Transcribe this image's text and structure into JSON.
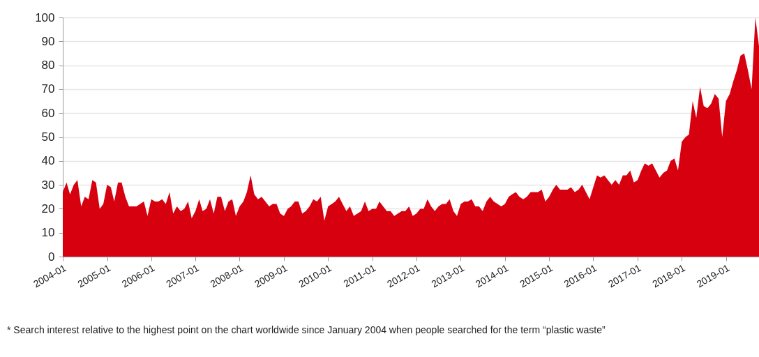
{
  "chart_data": {
    "type": "area",
    "x": [
      "2004-01",
      "2004-02",
      "2004-03",
      "2004-04",
      "2004-05",
      "2004-06",
      "2004-07",
      "2004-08",
      "2004-09",
      "2004-10",
      "2004-11",
      "2004-12",
      "2005-01",
      "2005-02",
      "2005-03",
      "2005-04",
      "2005-05",
      "2005-06",
      "2005-07",
      "2005-08",
      "2005-09",
      "2005-10",
      "2005-11",
      "2005-12",
      "2006-01",
      "2006-02",
      "2006-03",
      "2006-04",
      "2006-05",
      "2006-06",
      "2006-07",
      "2006-08",
      "2006-09",
      "2006-10",
      "2006-11",
      "2006-12",
      "2007-01",
      "2007-02",
      "2007-03",
      "2007-04",
      "2007-05",
      "2007-06",
      "2007-07",
      "2007-08",
      "2007-09",
      "2007-10",
      "2007-11",
      "2007-12",
      "2008-01",
      "2008-02",
      "2008-03",
      "2008-04",
      "2008-05",
      "2008-06",
      "2008-07",
      "2008-08",
      "2008-09",
      "2008-10",
      "2008-11",
      "2008-12",
      "2009-01",
      "2009-02",
      "2009-03",
      "2009-04",
      "2009-05",
      "2009-06",
      "2009-07",
      "2009-08",
      "2009-09",
      "2009-10",
      "2009-11",
      "2009-12",
      "2010-01",
      "2010-02",
      "2010-03",
      "2010-04",
      "2010-05",
      "2010-06",
      "2010-07",
      "2010-08",
      "2010-09",
      "2010-10",
      "2010-11",
      "2010-12",
      "2011-01",
      "2011-02",
      "2011-03",
      "2011-04",
      "2011-05",
      "2011-06",
      "2011-07",
      "2011-08",
      "2011-09",
      "2011-10",
      "2011-11",
      "2011-12",
      "2012-01",
      "2012-02",
      "2012-03",
      "2012-04",
      "2012-05",
      "2012-06",
      "2012-07",
      "2012-08",
      "2012-09",
      "2012-10",
      "2012-11",
      "2012-12",
      "2013-01",
      "2013-02",
      "2013-03",
      "2013-04",
      "2013-05",
      "2013-06",
      "2013-07",
      "2013-08",
      "2013-09",
      "2013-10",
      "2013-11",
      "2013-12",
      "2014-01",
      "2014-02",
      "2014-03",
      "2014-04",
      "2014-05",
      "2014-06",
      "2014-07",
      "2014-08",
      "2014-09",
      "2014-10",
      "2014-11",
      "2014-12",
      "2015-01",
      "2015-02",
      "2015-03",
      "2015-04",
      "2015-05",
      "2015-06",
      "2015-07",
      "2015-08",
      "2015-09",
      "2015-10",
      "2015-11",
      "2015-12",
      "2016-01",
      "2016-02",
      "2016-03",
      "2016-04",
      "2016-05",
      "2016-06",
      "2016-07",
      "2016-08",
      "2016-09",
      "2016-10",
      "2016-11",
      "2016-12",
      "2017-01",
      "2017-02",
      "2017-03",
      "2017-04",
      "2017-05",
      "2017-06",
      "2017-07",
      "2017-08",
      "2017-09",
      "2017-10",
      "2017-11",
      "2017-12",
      "2018-01",
      "2018-02",
      "2018-03",
      "2018-04",
      "2018-05",
      "2018-06",
      "2018-07",
      "2018-08",
      "2018-09",
      "2018-10",
      "2018-11",
      "2018-12",
      "2019-01",
      "2019-02",
      "2019-03",
      "2019-04",
      "2019-05",
      "2019-06",
      "2019-07",
      "2019-08",
      "2019-09",
      "2019-10"
    ],
    "values": [
      27,
      31,
      26,
      30,
      32,
      21,
      25,
      24,
      32,
      31,
      20,
      22,
      30,
      29,
      23,
      31,
      31,
      25,
      21,
      21,
      21,
      22,
      23,
      17,
      24,
      23,
      23,
      24,
      22,
      27,
      18,
      21,
      19,
      20,
      23,
      16,
      19,
      24,
      19,
      20,
      24,
      18,
      25,
      25,
      19,
      23,
      24,
      17,
      21,
      23,
      27,
      34,
      26,
      24,
      25,
      23,
      21,
      22,
      22,
      18,
      17,
      20,
      21,
      23,
      23,
      18,
      19,
      21,
      24,
      23,
      25,
      15,
      21,
      22,
      23,
      25,
      22,
      19,
      21,
      17,
      18,
      19,
      23,
      19,
      20,
      20,
      23,
      21,
      19,
      19,
      17,
      18,
      19,
      19,
      21,
      17,
      18,
      20,
      20,
      24,
      21,
      19,
      21,
      22,
      22,
      24,
      19,
      17,
      22,
      23,
      23,
      24,
      21,
      21,
      19,
      23,
      25,
      23,
      22,
      21,
      22,
      25,
      26,
      27,
      25,
      24,
      25,
      27,
      27,
      27,
      28,
      23,
      25,
      28,
      30,
      28,
      28,
      28,
      29,
      27,
      28,
      30,
      27,
      24,
      29,
      34,
      33,
      34,
      32,
      30,
      32,
      30,
      34,
      34,
      36,
      31,
      32,
      36,
      39,
      38,
      39,
      36,
      33,
      35,
      36,
      40,
      41,
      36,
      48,
      50,
      51,
      65,
      58,
      71,
      63,
      62,
      64,
      68,
      66,
      50,
      65,
      68,
      73,
      78,
      84,
      85,
      78,
      70,
      100,
      88
    ],
    "color": "#d7000f",
    "xlim": [
      "2004-01",
      "2019-10"
    ],
    "xticks": [
      "2004-01",
      "2005-01",
      "2006-01",
      "2007-01",
      "2008-01",
      "2009-01",
      "2010-01",
      "2011-01",
      "2012-01",
      "2013-01",
      "2014-01",
      "2015-01",
      "2016-01",
      "2017-01",
      "2018-01",
      "2019-01"
    ],
    "ylim": [
      0,
      100
    ],
    "yticks": [
      0,
      10,
      20,
      30,
      40,
      50,
      60,
      70,
      80,
      90,
      100
    ],
    "grid": "y",
    "annotations": [
      "* Search interest relative to the highest point on the chart worldwide since January 2004 when people searched for the term “plastic waste”"
    ]
  }
}
